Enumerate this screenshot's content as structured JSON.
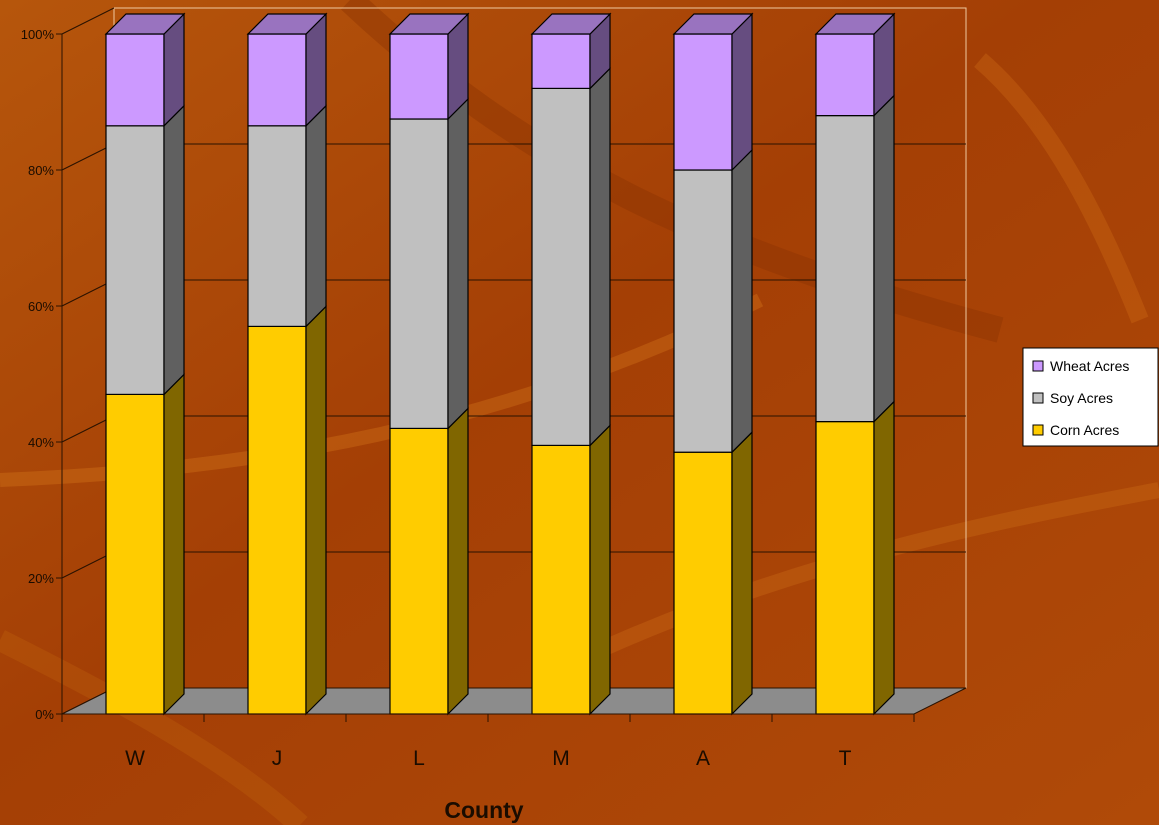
{
  "chart_data": {
    "type": "bar",
    "stacked": true,
    "percent_stacked": true,
    "three_d": true,
    "xlabel": "County",
    "ylabel": "",
    "categories": [
      "W",
      "J",
      "L",
      "M",
      "A",
      "T"
    ],
    "y_ticks": [
      "0%",
      "20%",
      "40%",
      "60%",
      "80%",
      "100%"
    ],
    "ylim": [
      0,
      100
    ],
    "grid": true,
    "legend_position": "right",
    "series": [
      {
        "name": "Corn Acres",
        "color": "#ffcc00",
        "values": [
          47,
          57,
          42,
          39.5,
          38.5,
          43
        ]
      },
      {
        "name": "Soy Acres",
        "color": "#c0c0c0",
        "values": [
          39.5,
          29.5,
          45.5,
          52.5,
          41.5,
          45
        ]
      },
      {
        "name": "Wheat Acres",
        "color": "#cc99ff",
        "values": [
          13.5,
          13.5,
          12.5,
          8,
          20,
          12
        ]
      }
    ],
    "legend_order": [
      "Wheat Acres",
      "Soy Acres",
      "Corn Acres"
    ]
  }
}
